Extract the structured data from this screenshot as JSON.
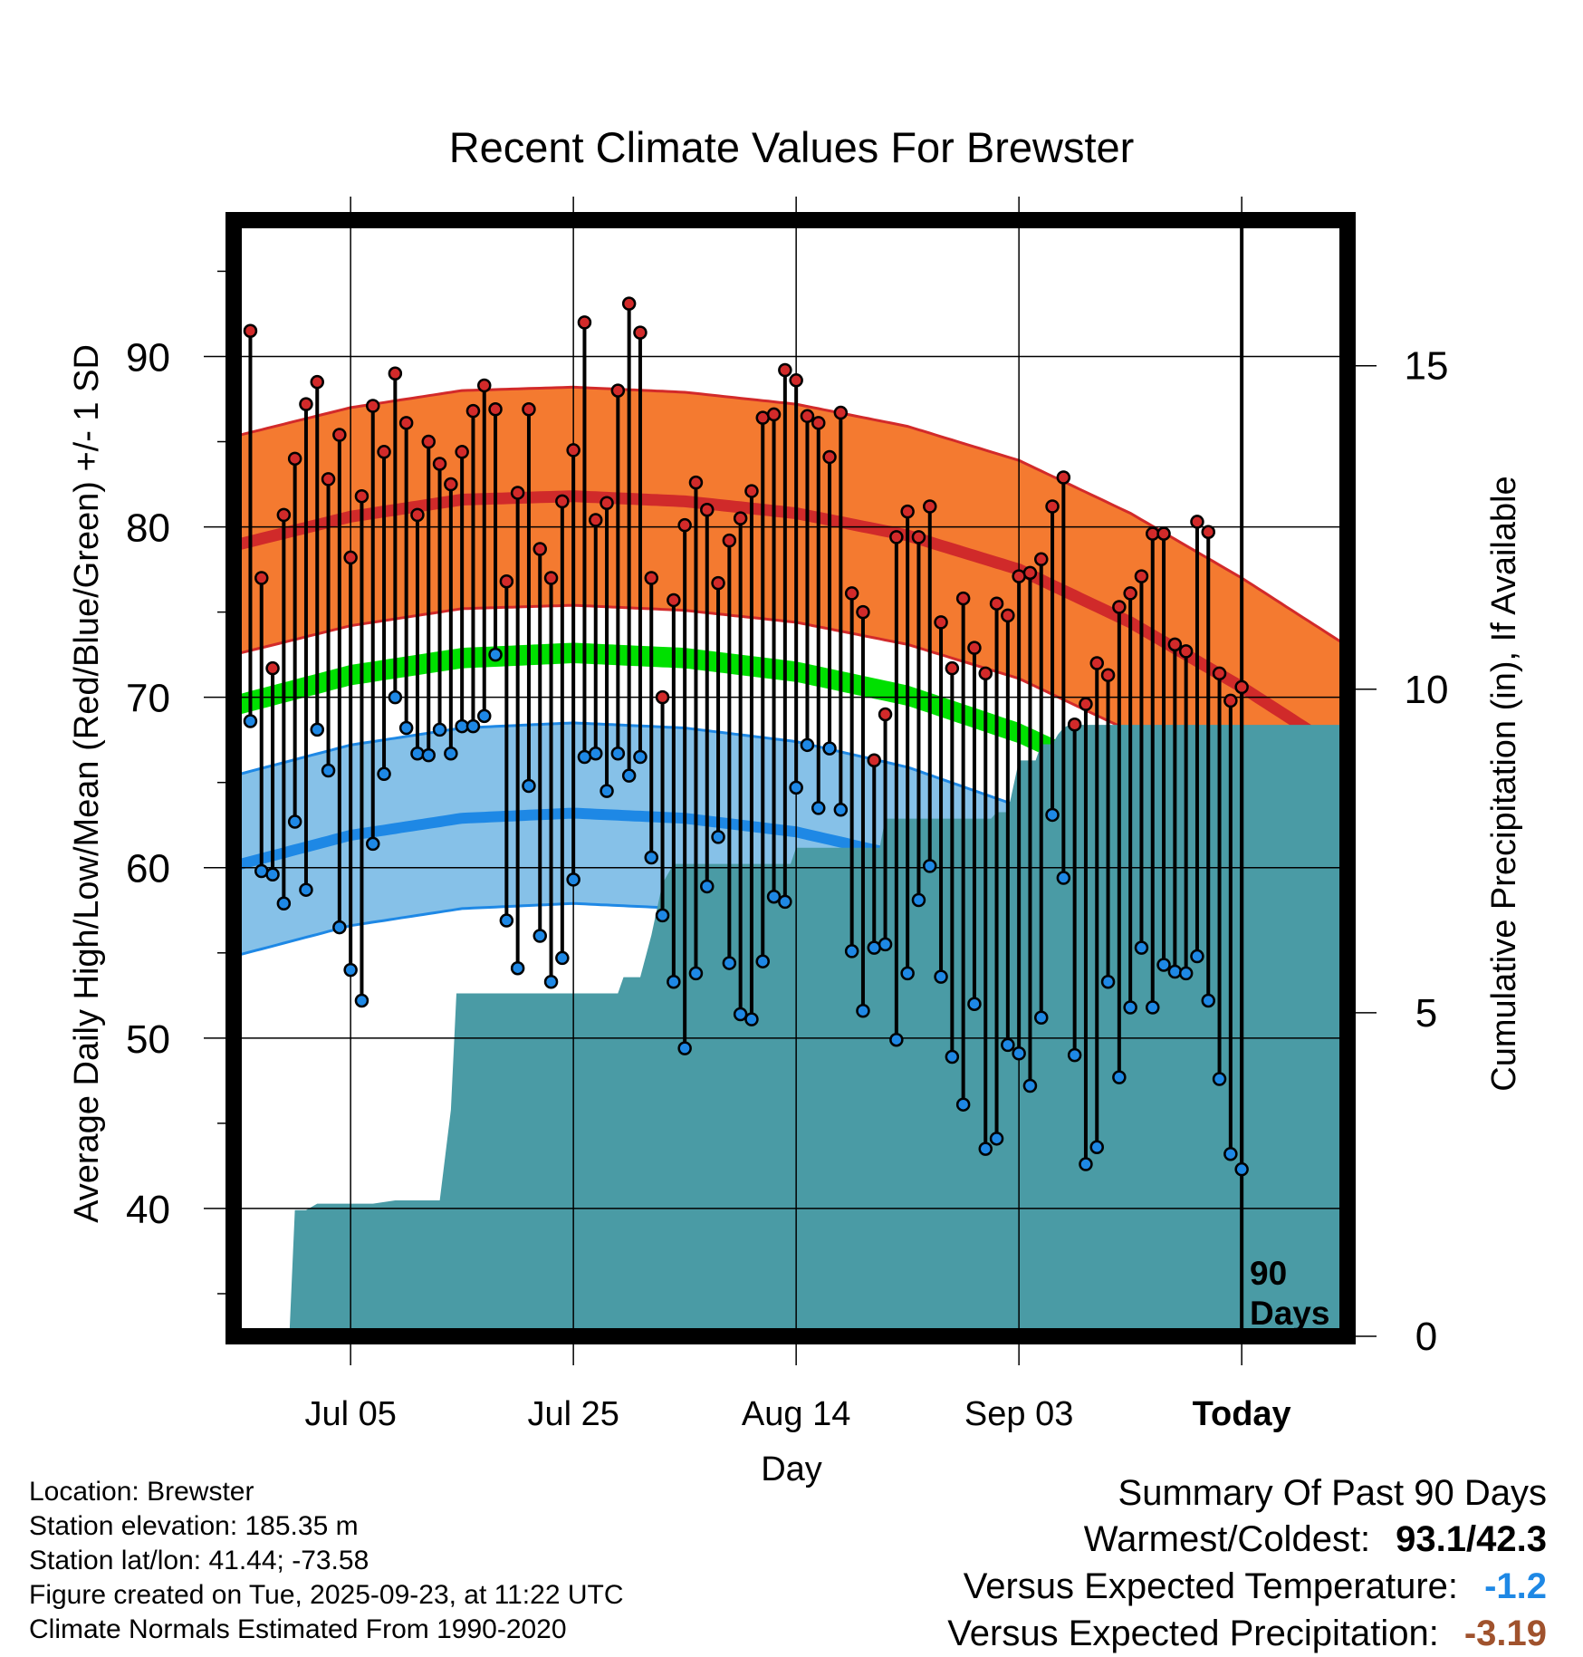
{
  "colors": {
    "high_band": "#f47a30",
    "high_band_edge": "#d22a2a",
    "high_mean_line": "#d02a2a",
    "low_band": "#86c1e8",
    "low_band_edge": "#1e88e5",
    "low_mean_line": "#1e88e5",
    "mean_line": "#00e000",
    "precip_fill": "#4a9ba5",
    "high_marker": "#d22a2a",
    "low_marker": "#1e88e5"
  },
  "chart_data": {
    "type": "line",
    "title": "Recent Climate Values For Brewster",
    "xlabel": "Day",
    "ylabel": "Average Daily High/Low/Mean (Red/Blue/Green) +/- 1 SD",
    "y2label": "Cumulative Precipitation (in), If Available",
    "ylim": [
      32.5,
      98
    ],
    "y2lim": [
      0,
      17.25
    ],
    "xlim": [
      -90.5,
      9.5
    ],
    "yticks": [
      40,
      50,
      60,
      70,
      80,
      90
    ],
    "yticklabels": [
      "40",
      "50",
      "60",
      "70",
      "80",
      "90"
    ],
    "y2ticks": [
      0,
      5,
      10,
      15
    ],
    "y2ticklabels": [
      "0",
      "5",
      "10",
      "15"
    ],
    "xticks": [
      -80,
      -60,
      -40,
      -20,
      0
    ],
    "xticklabels": [
      "Jul 05",
      "Jul 25",
      "Aug 14",
      "Sep 03",
      "Today"
    ],
    "window_label": [
      "90",
      "Days"
    ],
    "grid": true,
    "normal_high": {
      "days": [
        -90.5,
        -80,
        -70,
        -60,
        -50,
        -40,
        -30,
        -20,
        -10,
        0,
        9.5
      ],
      "mean": [
        78.9,
        80.6,
        81.6,
        81.8,
        81.5,
        80.8,
        79.5,
        77.5,
        74.4,
        70.6,
        66.6
      ],
      "sd": 6.4
    },
    "normal_mean": {
      "days": [
        -90.5,
        -80,
        -70,
        -60,
        -50,
        -40,
        -30,
        -20,
        -10,
        0,
        9.5
      ],
      "mean": [
        69.5,
        71.3,
        72.3,
        72.6,
        72.3,
        71.5,
        70.1,
        67.9,
        64.9,
        61.3,
        57.6
      ],
      "sd": 0.6
    },
    "normal_low": {
      "days": [
        -90.5,
        -80,
        -70,
        -60,
        -50,
        -40,
        -30,
        -20,
        -10,
        0,
        9.5
      ],
      "mean": [
        60.1,
        61.9,
        62.9,
        63.2,
        62.9,
        62.1,
        60.6,
        58.3,
        55.2,
        51.9,
        48.6
      ],
      "sd": 5.3
    },
    "series": [
      {
        "name": "Daily High",
        "values": [
          91.5,
          77.0,
          71.7,
          80.7,
          84.0,
          87.2,
          88.5,
          82.8,
          85.4,
          78.2,
          81.8,
          87.1,
          84.4,
          89.0,
          86.1,
          80.7,
          85.0,
          83.7,
          82.5,
          84.4,
          86.8,
          88.3,
          86.9,
          76.8,
          82.0,
          86.9,
          78.7,
          77.0,
          81.5,
          84.5,
          92.0,
          80.4,
          81.4,
          88.0,
          93.1,
          91.4,
          77.0,
          70.0,
          75.7,
          80.1,
          82.6,
          81.0,
          76.7,
          79.2,
          80.5,
          82.1,
          86.4,
          86.6,
          89.2,
          88.6,
          86.5,
          86.1,
          84.1,
          86.7,
          76.1,
          75.0,
          66.3,
          69.0,
          79.4,
          80.9,
          79.4,
          81.2,
          74.4,
          71.7,
          75.8,
          72.9,
          71.4,
          75.5,
          74.8,
          77.1,
          77.3,
          78.1,
          81.2,
          82.9,
          68.4,
          69.6,
          72.0,
          71.3,
          75.3,
          76.1,
          77.1,
          79.6,
          79.6,
          73.1,
          72.7,
          80.3,
          79.7,
          71.4,
          69.8,
          70.6
        ]
      },
      {
        "name": "Daily Low",
        "values": [
          68.6,
          59.8,
          59.6,
          57.9,
          62.7,
          58.7,
          68.1,
          65.7,
          56.5,
          54.0,
          52.2,
          61.4,
          65.5,
          70.0,
          68.2,
          66.7,
          66.6,
          68.1,
          66.7,
          68.3,
          68.3,
          68.9,
          72.5,
          56.9,
          54.1,
          64.8,
          56.0,
          53.3,
          54.7,
          59.3,
          66.5,
          66.7,
          64.5,
          66.7,
          65.4,
          66.5,
          60.6,
          57.2,
          53.3,
          49.4,
          53.8,
          58.9,
          61.8,
          54.4,
          51.4,
          51.1,
          54.5,
          58.3,
          58.0,
          64.7,
          67.2,
          63.5,
          67.0,
          63.4,
          55.1,
          51.6,
          55.3,
          55.5,
          49.9,
          53.8,
          58.1,
          60.1,
          53.6,
          48.9,
          46.1,
          52.0,
          43.5,
          44.1,
          49.6,
          49.1,
          47.2,
          51.2,
          63.1,
          59.4,
          49.0,
          42.6,
          43.6,
          53.3,
          47.7,
          51.8,
          55.3,
          51.8,
          54.3,
          53.9,
          53.8,
          54.8,
          52.2,
          47.6,
          43.2,
          42.3
        ]
      },
      {
        "name": "Cumulative Precipitation",
        "days": [
          -85.5,
          -85,
          -84,
          -83,
          -78,
          -76,
          -72,
          -71,
          -70.5,
          -56,
          -55.5,
          -54,
          -53,
          -52,
          -51,
          -50.5,
          -40.5,
          -40,
          -32.5,
          -32,
          -22.5,
          -22,
          -21,
          -20,
          -18.5,
          -18,
          -17,
          -16.5,
          -16,
          -15.5,
          9.5
        ],
        "values": [
          0,
          1.95,
          1.95,
          2.05,
          2.05,
          2.1,
          2.1,
          3.5,
          5.3,
          5.3,
          5.55,
          5.55,
          6.2,
          7.0,
          7.3,
          7.3,
          7.3,
          7.55,
          7.55,
          8.0,
          8.0,
          8.1,
          8.1,
          8.9,
          8.9,
          9.15,
          9.15,
          9.3,
          9.4,
          9.45,
          9.45
        ]
      }
    ]
  },
  "info": {
    "location": "Location: Brewster",
    "elevation": "Station elevation: 185.35 m",
    "latlon": "Station lat/lon: 41.44; -73.58",
    "created": "Figure created on Tue, 2025-09-23, at 11:22 UTC",
    "normals": "Climate Normals Estimated From 1990-2020"
  },
  "summary": {
    "title": "Summary Of Past 90 Days",
    "warm_cold_label": "Warmest/Coldest:",
    "warm_cold_value": "93.1/42.3",
    "temp_label": "Versus Expected Temperature:",
    "temp_value": "-1.2",
    "precip_label": "Versus Expected Precipitation:",
    "precip_value": "-3.19"
  }
}
